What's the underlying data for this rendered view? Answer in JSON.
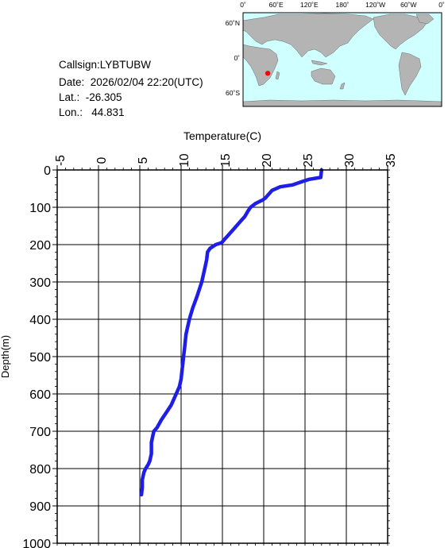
{
  "station": {
    "callsign_text": "Callsign:LYBTUBW",
    "date_text": "Date:  2026/02/04 22:20(UTC)",
    "lat_text": "Lat.:  -26.305",
    "lon_text": "Lon.:   44.831"
  },
  "map": {
    "top_labels": [
      "0˚",
      "60˚E",
      "120˚E",
      "180˚",
      "120˚W",
      "60˚W",
      "0˚"
    ],
    "side_labels": [
      "60˚N",
      "0˚",
      "60˚S"
    ],
    "marker": {
      "lat": -26.305,
      "lon": 44.831,
      "color": "#ff0000"
    },
    "ocean_color": "#cfffff",
    "land_color": "#b4b4b4"
  },
  "chart_data": {
    "type": "line",
    "xlabel": "Temperature(C)",
    "ylabel": "Depth(m)",
    "xlim": [
      -5,
      35
    ],
    "ylim": [
      0,
      1000
    ],
    "y_inverted": true,
    "x_axis_position": "top",
    "x_ticks": [
      "-5",
      "0",
      "5",
      "10",
      "15",
      "20",
      "25",
      "30",
      "35"
    ],
    "y_ticks": [
      "0",
      "100",
      "200",
      "300",
      "400",
      "500",
      "600",
      "700",
      "800",
      "900",
      "1000"
    ],
    "grid": true,
    "line_color": "#1e1ee6",
    "series": [
      {
        "temperature": [
          27.0,
          26.9,
          25.5,
          24.8,
          23.5,
          22.0,
          21.0,
          20.2,
          19.9,
          19.0,
          18.4,
          18.1,
          17.7,
          17.1,
          16.5,
          15.9,
          15.3,
          14.9,
          14.2,
          13.5,
          13.2,
          13.1,
          12.9,
          12.7,
          12.5,
          12.2,
          11.9,
          11.4,
          11.0,
          10.8,
          10.6,
          10.5,
          10.4,
          10.3,
          10.2,
          10.1,
          10.0,
          9.8,
          9.4,
          8.8,
          8.2,
          7.6,
          7.1,
          6.7,
          6.6,
          6.4,
          6.4,
          6.2,
          6.0,
          5.7,
          5.5,
          5.3,
          5.3,
          5.2
        ],
        "depth": [
          0,
          20,
          25,
          30,
          40,
          45,
          55,
          75,
          80,
          90,
          100,
          110,
          125,
          140,
          155,
          170,
          185,
          195,
          200,
          210,
          220,
          240,
          260,
          280,
          300,
          320,
          340,
          370,
          400,
          420,
          440,
          460,
          480,
          500,
          520,
          540,
          560,
          580,
          600,
          630,
          650,
          670,
          690,
          700,
          710,
          730,
          760,
          780,
          790,
          800,
          810,
          830,
          850,
          870
        ]
      }
    ]
  }
}
